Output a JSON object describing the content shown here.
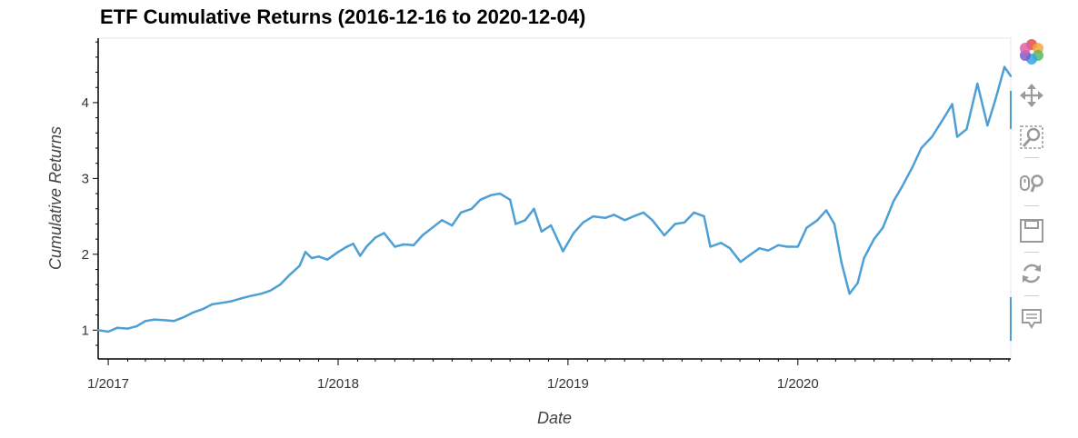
{
  "chart_data": {
    "type": "line",
    "title": "ETF Cumulative Returns (2016-12-16 to 2020-12-04)",
    "xlabel": "Date",
    "ylabel": "Cumulative Returns",
    "x_ticks": [
      "1/2017",
      "1/2018",
      "1/2019",
      "1/2020"
    ],
    "y_ticks": [
      1,
      2,
      3,
      4
    ],
    "xlim": [
      "2016-12-16",
      "2020-12-04"
    ],
    "ylim": [
      0.62,
      4.85
    ],
    "grid": false,
    "series": [
      {
        "color": "#4e9fd4",
        "points": [
          [
            "2016-12-16",
            1.0
          ],
          [
            "2017-01-01",
            0.98
          ],
          [
            "2017-01-15",
            1.03
          ],
          [
            "2017-02-01",
            1.02
          ],
          [
            "2017-02-15",
            1.05
          ],
          [
            "2017-03-01",
            1.12
          ],
          [
            "2017-03-15",
            1.14
          ],
          [
            "2017-04-01",
            1.13
          ],
          [
            "2017-04-15",
            1.12
          ],
          [
            "2017-05-01",
            1.17
          ],
          [
            "2017-05-15",
            1.23
          ],
          [
            "2017-06-01",
            1.28
          ],
          [
            "2017-06-15",
            1.34
          ],
          [
            "2017-07-01",
            1.36
          ],
          [
            "2017-07-15",
            1.38
          ],
          [
            "2017-08-01",
            1.42
          ],
          [
            "2017-08-15",
            1.45
          ],
          [
            "2017-09-01",
            1.48
          ],
          [
            "2017-09-15",
            1.52
          ],
          [
            "2017-10-01",
            1.6
          ],
          [
            "2017-10-15",
            1.72
          ],
          [
            "2017-11-01",
            1.85
          ],
          [
            "2017-11-10",
            2.03
          ],
          [
            "2017-11-20",
            1.95
          ],
          [
            "2017-12-01",
            1.97
          ],
          [
            "2017-12-15",
            1.93
          ],
          [
            "2018-01-01",
            2.03
          ],
          [
            "2018-01-15",
            2.1
          ],
          [
            "2018-01-25",
            2.14
          ],
          [
            "2018-02-05",
            1.98
          ],
          [
            "2018-02-15",
            2.1
          ],
          [
            "2018-03-01",
            2.22
          ],
          [
            "2018-03-15",
            2.28
          ],
          [
            "2018-04-01",
            2.1
          ],
          [
            "2018-04-15",
            2.13
          ],
          [
            "2018-05-01",
            2.12
          ],
          [
            "2018-05-15",
            2.25
          ],
          [
            "2018-06-01",
            2.36
          ],
          [
            "2018-06-15",
            2.45
          ],
          [
            "2018-07-01",
            2.38
          ],
          [
            "2018-07-15",
            2.55
          ],
          [
            "2018-08-01",
            2.6
          ],
          [
            "2018-08-15",
            2.72
          ],
          [
            "2018-09-01",
            2.78
          ],
          [
            "2018-09-15",
            2.8
          ],
          [
            "2018-10-01",
            2.72
          ],
          [
            "2018-10-10",
            2.4
          ],
          [
            "2018-10-25",
            2.45
          ],
          [
            "2018-11-08",
            2.6
          ],
          [
            "2018-11-20",
            2.3
          ],
          [
            "2018-12-05",
            2.38
          ],
          [
            "2018-12-24",
            2.04
          ],
          [
            "2019-01-10",
            2.28
          ],
          [
            "2019-01-25",
            2.42
          ],
          [
            "2019-02-10",
            2.5
          ],
          [
            "2019-03-01",
            2.48
          ],
          [
            "2019-03-15",
            2.52
          ],
          [
            "2019-04-01",
            2.45
          ],
          [
            "2019-04-15",
            2.5
          ],
          [
            "2019-05-01",
            2.55
          ],
          [
            "2019-05-15",
            2.45
          ],
          [
            "2019-06-03",
            2.25
          ],
          [
            "2019-06-20",
            2.4
          ],
          [
            "2019-07-05",
            2.42
          ],
          [
            "2019-07-20",
            2.55
          ],
          [
            "2019-08-05",
            2.5
          ],
          [
            "2019-08-15",
            2.1
          ],
          [
            "2019-09-01",
            2.15
          ],
          [
            "2019-09-15",
            2.08
          ],
          [
            "2019-10-02",
            1.9
          ],
          [
            "2019-10-15",
            1.98
          ],
          [
            "2019-11-01",
            2.08
          ],
          [
            "2019-11-15",
            2.05
          ],
          [
            "2019-12-01",
            2.12
          ],
          [
            "2019-12-15",
            2.1
          ],
          [
            "2020-01-01",
            2.1
          ],
          [
            "2020-01-15",
            2.35
          ],
          [
            "2020-02-01",
            2.45
          ],
          [
            "2020-02-15",
            2.58
          ],
          [
            "2020-02-28",
            2.4
          ],
          [
            "2020-03-10",
            1.9
          ],
          [
            "2020-03-23",
            1.48
          ],
          [
            "2020-04-05",
            1.62
          ],
          [
            "2020-04-15",
            1.95
          ],
          [
            "2020-05-01",
            2.2
          ],
          [
            "2020-05-15",
            2.35
          ],
          [
            "2020-06-01",
            2.7
          ],
          [
            "2020-06-15",
            2.9
          ],
          [
            "2020-07-01",
            3.15
          ],
          [
            "2020-07-15",
            3.4
          ],
          [
            "2020-08-01",
            3.55
          ],
          [
            "2020-08-20",
            3.8
          ],
          [
            "2020-09-02",
            3.98
          ],
          [
            "2020-09-10",
            3.55
          ],
          [
            "2020-09-25",
            3.65
          ],
          [
            "2020-10-12",
            4.25
          ],
          [
            "2020-10-28",
            3.7
          ],
          [
            "2020-11-10",
            4.05
          ],
          [
            "2020-11-24",
            4.47
          ],
          [
            "2020-12-04",
            4.35
          ]
        ]
      }
    ]
  },
  "toolbar": {
    "tools": [
      "bokeh-logo-icon",
      "pan-icon",
      "box-zoom-icon",
      "wheel-zoom-icon",
      "save-icon",
      "reset-icon",
      "hover-icon"
    ]
  }
}
